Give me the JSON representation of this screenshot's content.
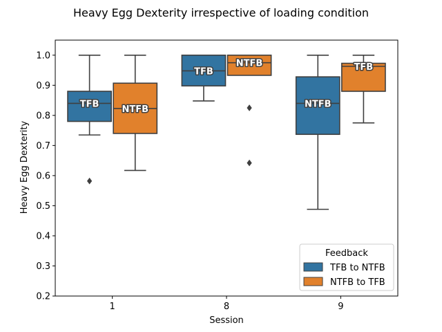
{
  "chart_data": {
    "type": "boxplot",
    "title": "Heavy Egg Dexterity irrespective of loading condition",
    "xlabel": "Session",
    "ylabel": "Heavy Egg Dexterity",
    "ylim": [
      0.2,
      1.05
    ],
    "yticks": [
      "0.2",
      "0.3",
      "0.4",
      "0.5",
      "0.6",
      "0.7",
      "0.8",
      "0.9",
      "1.0"
    ],
    "categories": [
      "1",
      "8",
      "9"
    ],
    "legend": {
      "title": "Feedback",
      "position": "lower-right",
      "entries": [
        "TFB to NTFB",
        "NTFB to TFB"
      ]
    },
    "series": [
      {
        "name": "TFB to NTFB",
        "color": "#3274a1",
        "boxes": [
          {
            "whislo": 0.735,
            "q1": 0.78,
            "med": 0.84,
            "q3": 0.88,
            "whishi": 1.0,
            "fliers": [
              0.582
            ],
            "label": "TFB"
          },
          {
            "whislo": 0.848,
            "q1": 0.898,
            "med": 0.948,
            "q3": 1.0,
            "whishi": 1.0,
            "fliers": [],
            "label": "TFB"
          },
          {
            "whislo": 0.488,
            "q1": 0.737,
            "med": 0.84,
            "q3": 0.928,
            "whishi": 1.0,
            "fliers": [],
            "label": "NTFB"
          }
        ]
      },
      {
        "name": "NTFB to TFB",
        "color": "#e1812c",
        "boxes": [
          {
            "whislo": 0.617,
            "q1": 0.74,
            "med": 0.823,
            "q3": 0.907,
            "whishi": 1.0,
            "fliers": [],
            "label": "NTFB"
          },
          {
            "whislo": 0.933,
            "q1": 0.933,
            "med": 0.975,
            "q3": 1.0,
            "whishi": 1.0,
            "fliers": [
              0.825,
              0.642
            ],
            "label": "NTFB"
          },
          {
            "whislo": 0.775,
            "q1": 0.88,
            "med": 0.963,
            "q3": 0.973,
            "whishi": 1.0,
            "fliers": [],
            "label": "TFB"
          }
        ]
      }
    ]
  }
}
